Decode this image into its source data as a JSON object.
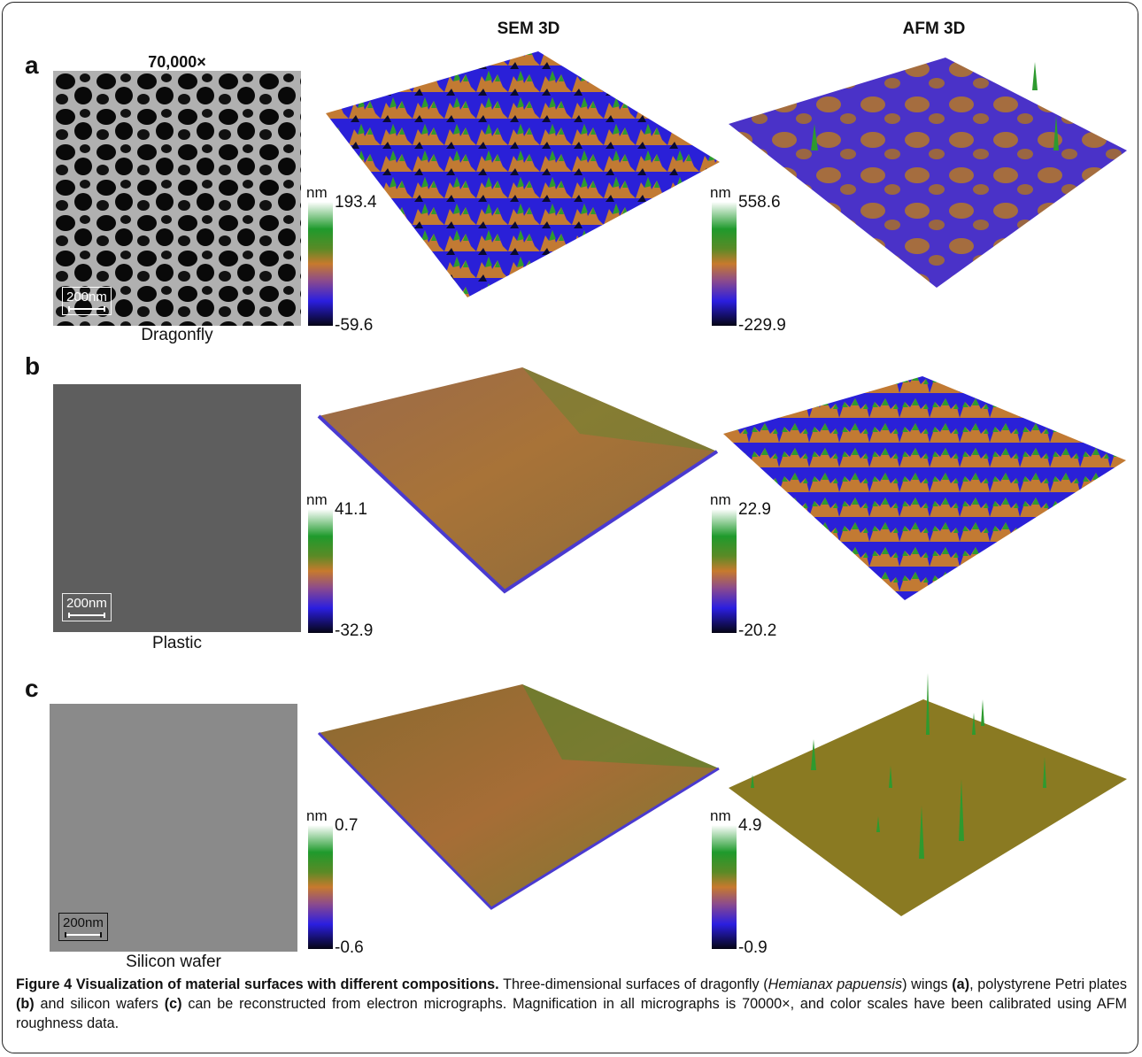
{
  "columns": {
    "sem": "SEM 3D",
    "afm": "AFM 3D"
  },
  "magnification": "70,000×",
  "units": "nm",
  "panels": [
    {
      "label": "a",
      "sample": "Dragonfly",
      "scale_bar": "200nm",
      "sem_max": "193.4",
      "sem_min": "-59.6",
      "afm_max": "558.6",
      "afm_min": "-229.9"
    },
    {
      "label": "b",
      "sample": "Plastic",
      "scale_bar": "200nm",
      "sem_max": "41.1",
      "sem_min": "-32.9",
      "afm_max": "22.9",
      "afm_min": "-20.2"
    },
    {
      "label": "c",
      "sample": "Silicon wafer",
      "scale_bar": "200nm",
      "sem_max": "0.7",
      "sem_min": "-0.6",
      "afm_max": "4.9",
      "afm_min": "-0.9"
    }
  ],
  "caption": {
    "title": "Figure 4 Visualization of material surfaces with different compositions.",
    "t1": " Three-dimensional surfaces of dragonfly (",
    "species": "Hemianax papuensis",
    "t2": ") wings ",
    "ref_a": "(a)",
    "t3": ", polystyrene Petri plates ",
    "ref_b": "(b)",
    "t4": " and silicon wafers ",
    "ref_c": "(c)",
    "t5": " can be reconstructed from electron micrographs. Magnification in all micrographs is 70000×, and color scales have been calibrated using AFM roughness data."
  },
  "colors": {
    "green": "#2e9a2f",
    "orange": "#c27a33",
    "blue": "#2a20d8",
    "olive": "#8a7a22"
  }
}
